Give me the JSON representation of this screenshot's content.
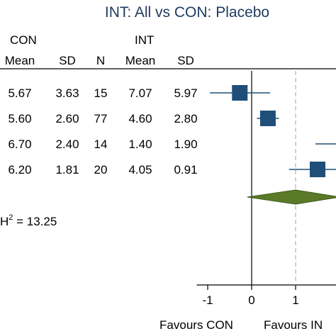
{
  "chart_data": {
    "type": "forest",
    "title": "INT: All vs CON: Placebo",
    "group_headers": {
      "con": "CON",
      "int": "INT"
    },
    "columns": [
      "Mean",
      "SD",
      "N",
      "Mean",
      "SD"
    ],
    "rows": [
      {
        "con_mean": "5.67",
        "con_sd": "3.63",
        "n": "15",
        "int_mean": "7.07",
        "int_sd": "5.97",
        "estimate": -0.27,
        "ci": [
          -0.95,
          0.42
        ]
      },
      {
        "con_mean": "5.60",
        "con_sd": "2.60",
        "n": "77",
        "int_mean": "4.60",
        "int_sd": "2.80",
        "estimate": 0.37,
        "ci": [
          0.12,
          0.62
        ]
      },
      {
        "con_mean": "6.70",
        "con_sd": "2.40",
        "n": "14",
        "int_mean": "1.40",
        "int_sd": "1.90",
        "estimate": null,
        "ci": [
          1.45,
          2.0
        ]
      },
      {
        "con_mean": "6.20",
        "con_sd": "1.81",
        "n": "20",
        "int_mean": "4.05",
        "int_sd": "0.91",
        "estimate": 1.5,
        "ci": [
          0.85,
          2.0
        ]
      }
    ],
    "overall": {
      "estimate": 1.0,
      "ci": [
        -0.1,
        2.0
      ]
    },
    "heterogeneity_text": "H",
    "heterogeneity_sup": "2",
    "heterogeneity_value": " = 13.25",
    "x_ticks": [
      -1,
      0,
      1
    ],
    "x_tick_labels": [
      "-1",
      "0",
      "1"
    ],
    "xlim": [
      -1.25,
      1.55
    ],
    "null_line": 0,
    "reference_line": 1,
    "xlabel_left": "Favours CON",
    "xlabel_right": "Favours IN",
    "colors": {
      "marker": "#1f4e79",
      "diamond": "#5a7a2a",
      "diamond_edge": "#3f5a1a",
      "ref_line": "#bbbbbb",
      "title": "#1f3a5f"
    }
  }
}
